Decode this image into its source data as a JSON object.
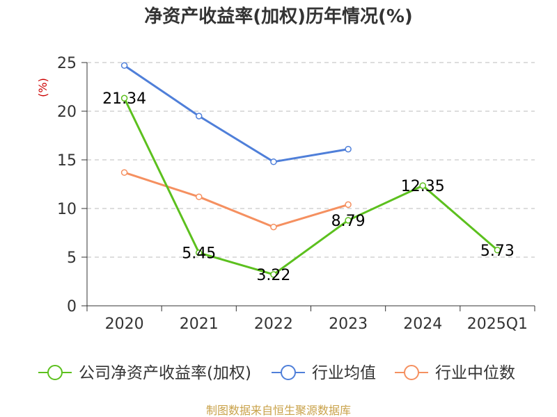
{
  "chart_data": {
    "type": "line",
    "title": "净资产收益率(加权)历年情况(%)",
    "ylabel": "(%)",
    "xlabel": "",
    "categories": [
      "2020",
      "2021",
      "2022",
      "2023",
      "2024",
      "2025Q1"
    ],
    "ylim": [
      0,
      25
    ],
    "yticks": [
      0,
      5,
      10,
      15,
      20,
      25
    ],
    "grid": true,
    "legend_position": "bottom",
    "series": [
      {
        "name": "公司净资产收益率(加权)",
        "color": "#5cc01e",
        "values": [
          21.34,
          5.45,
          3.22,
          8.79,
          12.35,
          5.73
        ],
        "labels": [
          "21.34",
          "5.45",
          "3.22",
          "8.79",
          "12.35",
          "5.73"
        ]
      },
      {
        "name": "行业均值",
        "color": "#4f7fd9",
        "values": [
          24.7,
          19.5,
          14.8,
          16.1,
          null,
          null
        ]
      },
      {
        "name": "行业中位数",
        "color": "#f59060",
        "values": [
          13.7,
          11.2,
          8.1,
          10.4,
          null,
          null
        ]
      }
    ],
    "source": "制图数据来自恒生聚源数据库"
  }
}
